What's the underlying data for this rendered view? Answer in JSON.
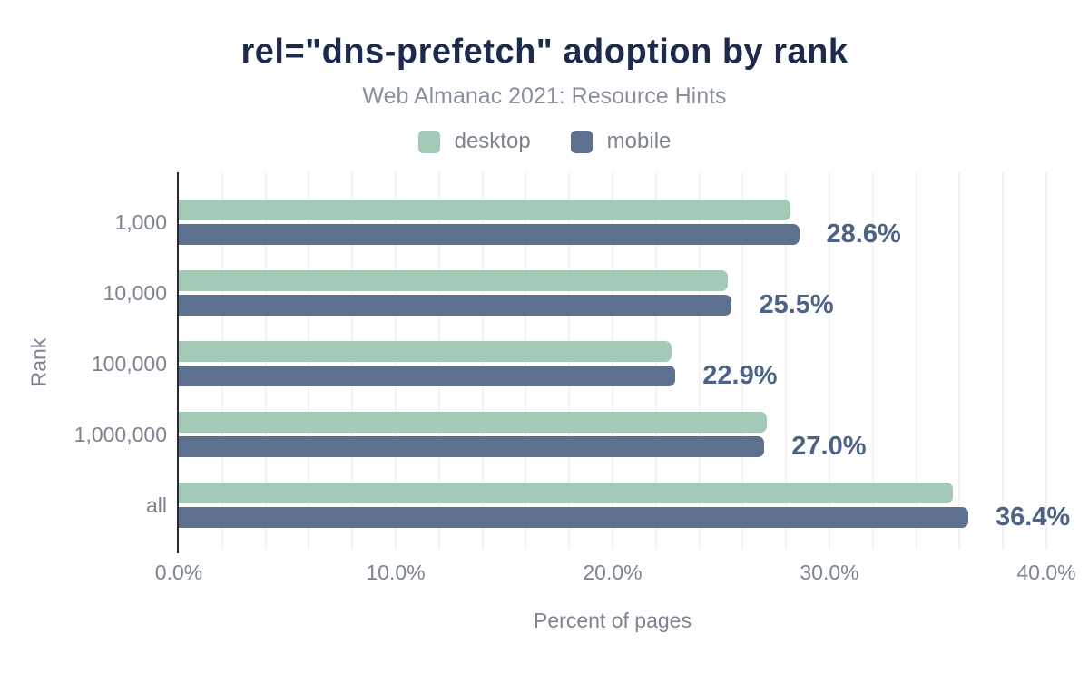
{
  "chart": {
    "title": "rel=\"dns-prefetch\" adoption by rank",
    "subtitle": "Web Almanac 2021: Resource Hints",
    "colors": {
      "title_text": "#1c2b4d",
      "muted_text": "#7e848f",
      "data_label_text": "#4d6285",
      "gridline": "#f2f3f5",
      "axis_line": "#26292f",
      "desktop": "#a4c9b6",
      "mobile": "#5d7090"
    },
    "chart_data": {
      "type": "bar",
      "orientation": "horizontal",
      "title": "rel=\"dns-prefetch\" adoption by rank",
      "subtitle": "Web Almanac 2021: Resource Hints",
      "categories": [
        "1,000",
        "10,000",
        "100,000",
        "1,000,000",
        "all"
      ],
      "series": [
        {
          "name": "desktop",
          "color": "#a4c9b6",
          "values": [
            28.2,
            25.3,
            22.7,
            27.1,
            35.7
          ]
        },
        {
          "name": "mobile",
          "color": "#5d7090",
          "values": [
            28.6,
            25.5,
            22.9,
            27.0,
            36.4
          ]
        }
      ],
      "data_labels": [
        "28.6%",
        "25.5%",
        "22.9%",
        "27.0%",
        "36.4%"
      ],
      "data_labels_series": "mobile",
      "xlabel": "Percent of pages",
      "ylabel": "Rank",
      "xlim": [
        0,
        40
      ],
      "x_ticks": [
        0,
        10,
        20,
        30,
        40
      ],
      "x_tick_labels": [
        "0.0%",
        "10.0%",
        "20.0%",
        "30.0%",
        "40.0%"
      ],
      "grid_step_percent": 2,
      "grid": "vertical-only",
      "legend_position": "top-center"
    }
  }
}
